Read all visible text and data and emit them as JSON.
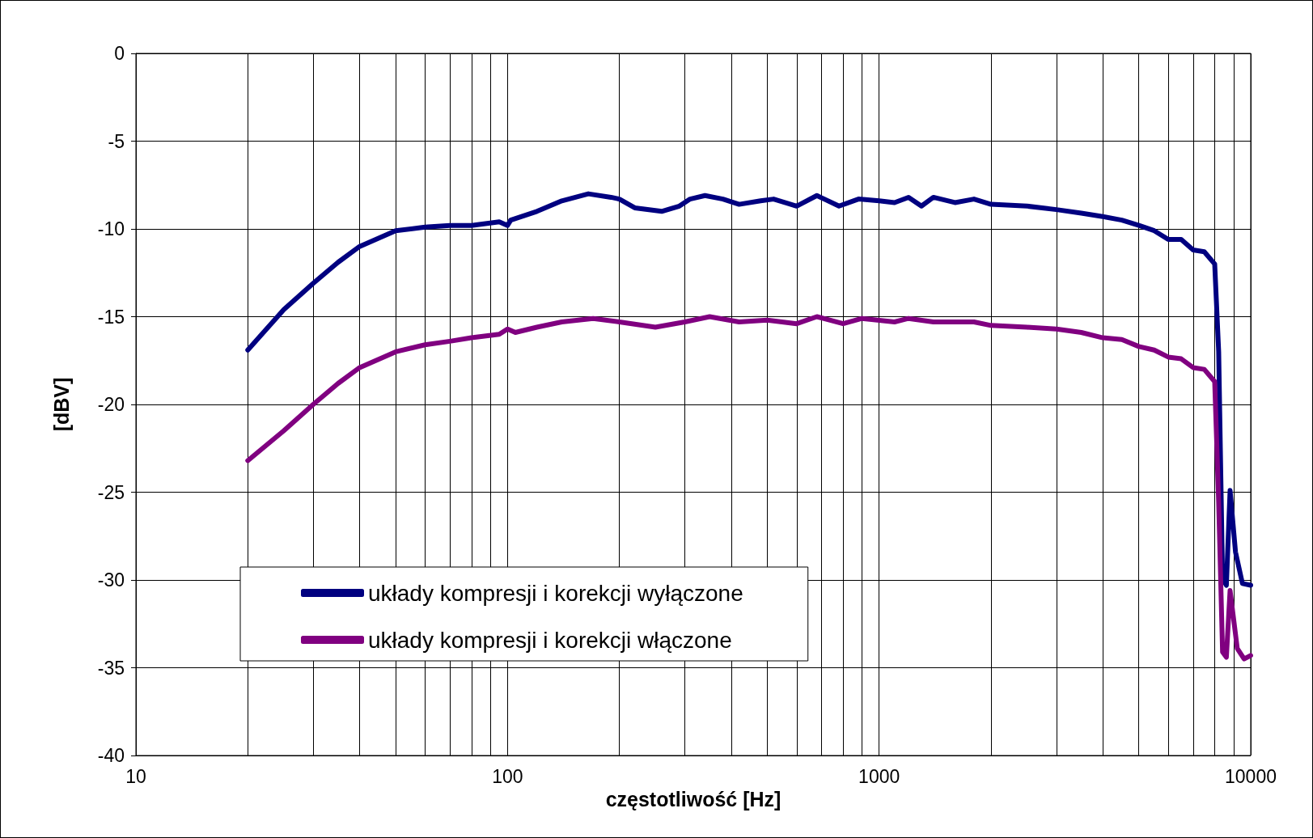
{
  "chart_data": {
    "type": "line",
    "xlabel": "częstotliwość [Hz]",
    "ylabel": "[dBV]",
    "log": "x",
    "grid": true,
    "legend": "bottom left",
    "marker": "none",
    "line_style": "solid",
    "xlim": [
      10,
      10000
    ],
    "ylim": [
      -40,
      0
    ],
    "xticks": [
      10,
      {
        "value": 20,
        "label": null
      },
      {
        "value": 30,
        "label": null
      },
      {
        "value": 40,
        "label": null
      },
      {
        "value": 50,
        "label": null
      },
      {
        "value": 60,
        "label": null
      },
      {
        "value": 70,
        "label": null
      },
      {
        "value": 80,
        "label": null
      },
      {
        "value": 90,
        "label": null
      },
      100,
      {
        "value": 200,
        "label": null
      },
      {
        "value": 300,
        "label": null
      },
      {
        "value": 400,
        "label": null
      },
      {
        "value": 500,
        "label": null
      },
      {
        "value": 600,
        "label": null
      },
      {
        "value": 700,
        "label": null
      },
      {
        "value": 800,
        "label": null
      },
      {
        "value": 900,
        "label": null
      },
      1000,
      {
        "value": 2000,
        "label": null
      },
      {
        "value": 3000,
        "label": null
      },
      {
        "value": 4000,
        "label": null
      },
      {
        "value": 5000,
        "label": null
      },
      {
        "value": 6000,
        "label": null
      },
      {
        "value": 7000,
        "label": null
      },
      {
        "value": 8000,
        "label": null
      },
      {
        "value": 9000,
        "label": null
      },
      10000
    ],
    "yticks": [
      -40,
      -35,
      -30,
      -25,
      -20,
      -15,
      -10,
      -5,
      0
    ],
    "series": [
      {
        "name": "układy kompresji i korekcji wyłączone",
        "color": "#000080",
        "x": [
          20,
          25,
          30,
          35,
          40,
          50,
          60,
          70,
          80,
          95,
          100,
          102,
          120,
          140,
          165,
          190,
          200,
          220,
          260,
          290,
          310,
          340,
          380,
          420,
          480,
          520,
          600,
          680,
          780,
          880,
          1000,
          1100,
          1200,
          1300,
          1400,
          1600,
          1800,
          2000,
          2500,
          3000,
          3500,
          4000,
          4500,
          5000,
          5500,
          6000,
          6500,
          7000,
          7500,
          8000,
          8200,
          8400,
          8600,
          8800,
          9100,
          9500,
          10000
        ],
        "values": [
          -16.9,
          -14.6,
          -13.1,
          -11.9,
          -11.0,
          -10.1,
          -9.9,
          -9.8,
          -9.8,
          -9.6,
          -9.8,
          -9.5,
          -9.0,
          -8.4,
          -8.0,
          -8.2,
          -8.3,
          -8.8,
          -9.0,
          -8.7,
          -8.3,
          -8.1,
          -8.3,
          -8.6,
          -8.4,
          -8.3,
          -8.7,
          -8.1,
          -8.7,
          -8.3,
          -8.4,
          -8.5,
          -8.2,
          -8.7,
          -8.2,
          -8.5,
          -8.3,
          -8.6,
          -8.7,
          -8.9,
          -9.1,
          -9.3,
          -9.5,
          -9.8,
          -10.1,
          -10.6,
          -10.6,
          -11.2,
          -11.3,
          -12.0,
          -17.0,
          -29.9,
          -30.3,
          -24.9,
          -28.4,
          -30.2,
          -30.3
        ]
      },
      {
        "name": "układy kompresji i korekcji włączone",
        "color": "#800080",
        "x": [
          20,
          25,
          30,
          35,
          40,
          50,
          60,
          70,
          80,
          95,
          100,
          105,
          120,
          140,
          170,
          200,
          250,
          300,
          350,
          420,
          500,
          600,
          680,
          800,
          900,
          1100,
          1200,
          1400,
          1800,
          2000,
          2500,
          3000,
          3500,
          4000,
          4500,
          5000,
          5500,
          6000,
          6500,
          7000,
          7500,
          8000,
          8200,
          8400,
          8600,
          8800,
          9200,
          9600,
          10000
        ],
        "values": [
          -23.2,
          -21.5,
          -20.0,
          -18.8,
          -17.9,
          -17.0,
          -16.6,
          -16.4,
          -16.2,
          -16.0,
          -15.7,
          -15.9,
          -15.6,
          -15.3,
          -15.1,
          -15.3,
          -15.6,
          -15.3,
          -15.0,
          -15.3,
          -15.2,
          -15.4,
          -15.0,
          -15.4,
          -15.1,
          -15.3,
          -15.1,
          -15.3,
          -15.3,
          -15.5,
          -15.6,
          -15.7,
          -15.9,
          -16.2,
          -16.3,
          -16.7,
          -16.9,
          -17.3,
          -17.4,
          -17.9,
          -18.0,
          -18.7,
          -25.6,
          -34.1,
          -34.4,
          -30.6,
          -33.9,
          -34.5,
          -34.3
        ]
      }
    ]
  }
}
